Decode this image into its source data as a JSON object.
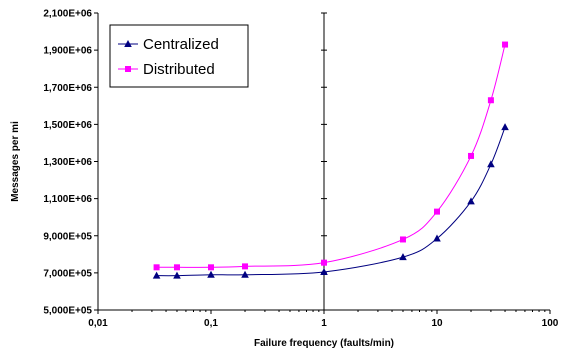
{
  "chart_data": {
    "type": "line",
    "xlabel": "Failure frequency (faults/min)",
    "ylabel": "Messages per mi",
    "x_scale": "log",
    "xlim": [
      0.01,
      100
    ],
    "ylim": [
      500000,
      2100000
    ],
    "x_ticks": [
      0.01,
      0.1,
      1,
      10,
      100
    ],
    "x_tick_labels": [
      "0,01",
      "0,1",
      "1",
      "10",
      "100"
    ],
    "y_ticks": [
      500000,
      700000,
      900000,
      1100000,
      1300000,
      1500000,
      1700000,
      1900000,
      2100000
    ],
    "y_tick_labels": [
      "5,000E+05",
      "7,000E+05",
      "9,000E+05",
      "1,100E+06",
      "1,300E+06",
      "1,500E+06",
      "1,700E+06",
      "1,900E+06",
      "2,100E+06"
    ],
    "grid": false,
    "legend_position": "top-left",
    "series": [
      {
        "name": "Centralized",
        "color": "#000080",
        "marker": "triangle",
        "x": [
          0.033,
          0.05,
          0.1,
          0.2,
          1,
          5,
          10,
          20,
          30,
          40
        ],
        "y": [
          685000,
          685000,
          690000,
          690000,
          705000,
          785000,
          885000,
          1085000,
          1285000,
          1485000
        ]
      },
      {
        "name": "Distributed",
        "color": "#ff00ff",
        "marker": "square",
        "x": [
          0.033,
          0.05,
          0.1,
          0.2,
          1,
          5,
          10,
          20,
          30,
          40
        ],
        "y": [
          730000,
          730000,
          730000,
          735000,
          755000,
          880000,
          1030000,
          1330000,
          1630000,
          1930000
        ]
      }
    ]
  }
}
